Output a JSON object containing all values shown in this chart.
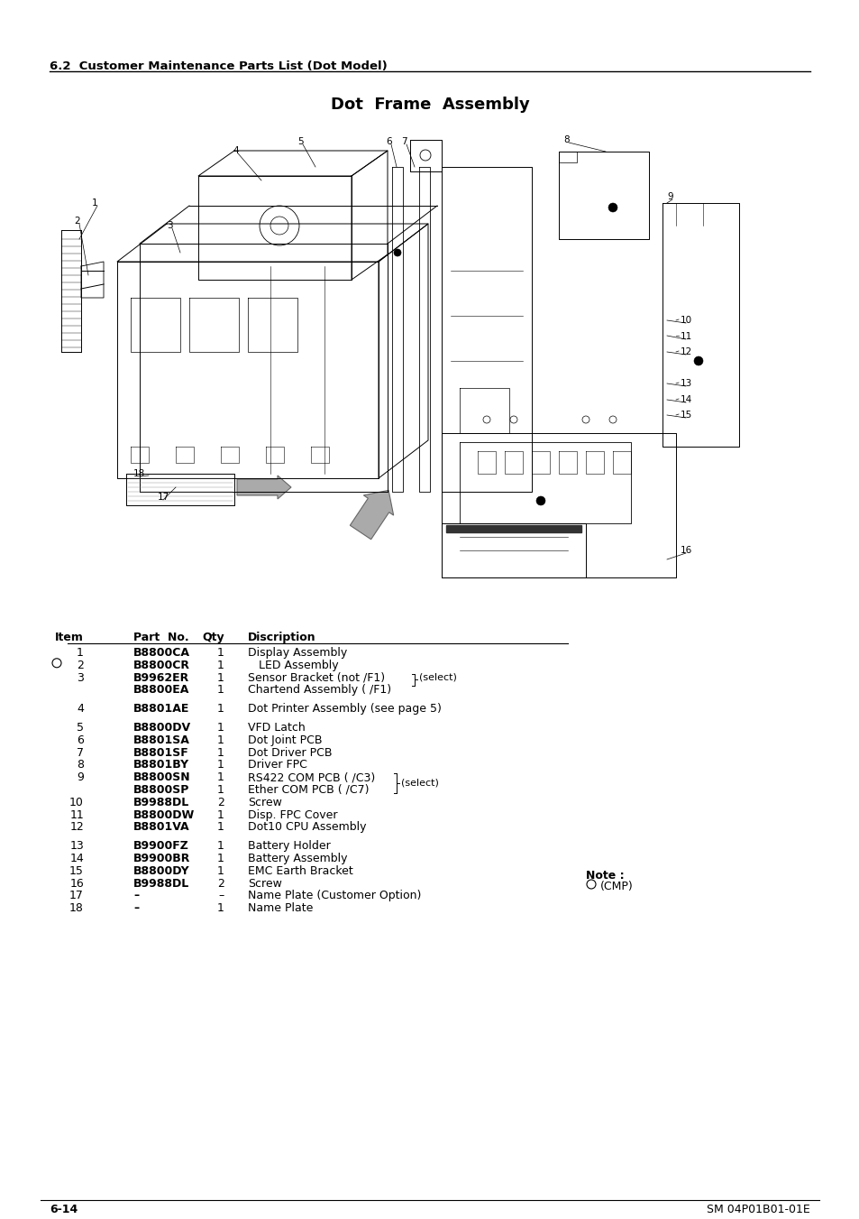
{
  "page_header": "6.2  Customer Maintenance Parts List (Dot Model)",
  "diagram_title": "Dot  Frame  Assembly",
  "table_headers": [
    "Item",
    "Part  No.",
    "Qty",
    "Discription"
  ],
  "table_rows": [
    {
      "item": "1",
      "part": "B8800CA",
      "qty": "1",
      "desc": "Display Assembly",
      "circle": false
    },
    {
      "item": "2",
      "part": "B8800CR",
      "qty": "1",
      "desc": "   LED Assembly",
      "circle": true
    },
    {
      "item": "3",
      "part": "B9962ER",
      "qty": "1",
      "desc": "Sensor Bracket (not /F1)",
      "circle": false
    },
    {
      "item": "",
      "part": "B8800EA",
      "qty": "1",
      "desc": "Chartend Assembly ( /F1)",
      "circle": false
    },
    {
      "item": "4",
      "part": "B8801AE",
      "qty": "1",
      "desc": "Dot Printer Assembly (see page 5)",
      "circle": false
    },
    {
      "item": "5",
      "part": "B8800DV",
      "qty": "1",
      "desc": "VFD Latch",
      "circle": false
    },
    {
      "item": "6",
      "part": "B8801SA",
      "qty": "1",
      "desc": "Dot Joint PCB",
      "circle": false
    },
    {
      "item": "7",
      "part": "B8801SF",
      "qty": "1",
      "desc": "Dot Driver PCB",
      "circle": false
    },
    {
      "item": "8",
      "part": "B8801BY",
      "qty": "1",
      "desc": "Driver FPC",
      "circle": false
    },
    {
      "item": "9",
      "part": "B8800SN",
      "qty": "1",
      "desc": "RS422 COM PCB ( /C3)",
      "circle": false
    },
    {
      "item": "",
      "part": "B8800SP",
      "qty": "1",
      "desc": "Ether COM PCB ( /C7)",
      "circle": false
    },
    {
      "item": "10",
      "part": "B9988DL",
      "qty": "2",
      "desc": "Screw",
      "circle": false
    },
    {
      "item": "11",
      "part": "B8800DW",
      "qty": "1",
      "desc": "Disp. FPC Cover",
      "circle": false
    },
    {
      "item": "12",
      "part": "B8801VA",
      "qty": "1",
      "desc": "Dot10 CPU Assembly",
      "circle": false
    },
    {
      "item": "13",
      "part": "B9900FZ",
      "qty": "1",
      "desc": "Battery Holder",
      "circle": false
    },
    {
      "item": "14",
      "part": "B9900BR",
      "qty": "1",
      "desc": "Battery Assembly",
      "circle": false
    },
    {
      "item": "15",
      "part": "B8800DY",
      "qty": "1",
      "desc": "EMC Earth Bracket",
      "circle": false
    },
    {
      "item": "16",
      "part": "B9988DL",
      "qty": "2",
      "desc": "Screw",
      "circle": false
    },
    {
      "item": "17",
      "part": "–",
      "qty": "–",
      "desc": "Name Plate (Customer Option)",
      "circle": false
    },
    {
      "item": "18",
      "part": "–",
      "qty": "1",
      "desc": "Name Plate",
      "circle": false
    }
  ],
  "note_text": "Note :",
  "footer_left": "6-14",
  "footer_right": "SM 04P01B01-01E",
  "bg_color": "#ffffff"
}
